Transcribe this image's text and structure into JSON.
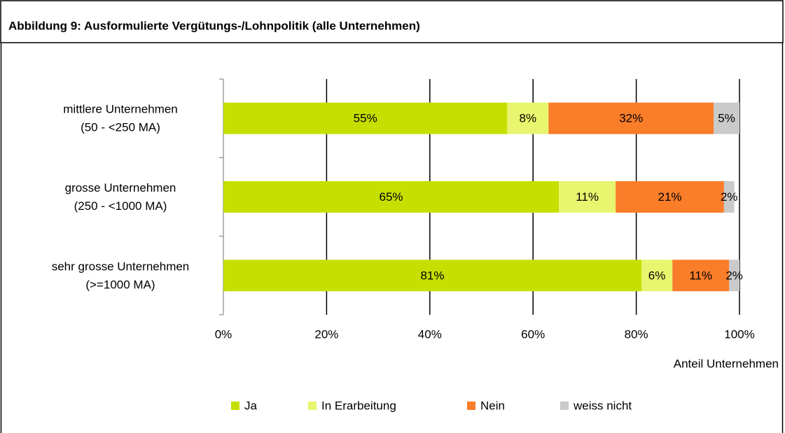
{
  "chart_data": {
    "type": "stacked-bar-horizontal",
    "title": "Abbildung 9: Ausformulierte Vergütungs-/Lohnpolitik (alle Unternehmen)",
    "categories": [
      [
        "mittlere Unternehmen",
        "(50 - <250 MA)"
      ],
      [
        "grosse Unternehmen",
        "(250 - <1000 MA)"
      ],
      [
        "sehr grosse Unternehmen",
        "(>=1000 MA)"
      ]
    ],
    "series": [
      {
        "name": "Ja",
        "color": "#c6df00",
        "values": [
          55,
          65,
          81
        ],
        "value_labels": [
          "55%",
          "65%",
          "81%"
        ]
      },
      {
        "name": "In Erarbeitung",
        "color": "#e8f56e",
        "values": [
          8,
          11,
          6
        ],
        "value_labels": [
          "8%",
          "11%",
          "6%"
        ]
      },
      {
        "name": "Nein",
        "color": "#fa7d2a",
        "values": [
          32,
          21,
          11
        ],
        "value_labels": [
          "32%",
          "21%",
          "11%"
        ]
      },
      {
        "name": "weiss nicht",
        "color": "#cacaca",
        "values": [
          5,
          2,
          2
        ],
        "value_labels": [
          "5%",
          "2%",
          "2%"
        ]
      }
    ],
    "xlabel": "Anteil Unternehmen",
    "xlim": [
      0,
      100
    ],
    "xticks": [
      {
        "value": 0,
        "label": "0%"
      },
      {
        "value": 20,
        "label": "20%"
      },
      {
        "value": 40,
        "label": "40%"
      },
      {
        "value": 60,
        "label": "60%"
      },
      {
        "value": 80,
        "label": "80%"
      },
      {
        "value": 100,
        "label": "100%"
      }
    ],
    "grid": true,
    "legend": "bottom"
  }
}
